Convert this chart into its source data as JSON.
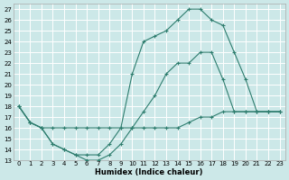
{
  "xlabel": "Humidex (Indice chaleur)",
  "background_color": "#cce8e8",
  "line_color": "#2e7d6e",
  "grid_color": "#ffffff",
  "xlim": [
    -0.5,
    23.5
  ],
  "ylim": [
    13,
    27.5
  ],
  "yticks": [
    13,
    14,
    15,
    16,
    17,
    18,
    19,
    20,
    21,
    22,
    23,
    24,
    25,
    26,
    27
  ],
  "xticks": [
    0,
    1,
    2,
    3,
    4,
    5,
    6,
    7,
    8,
    9,
    10,
    11,
    12,
    13,
    14,
    15,
    16,
    17,
    18,
    19,
    20,
    21,
    22,
    23
  ],
  "line1_x": [
    0,
    1,
    2,
    3,
    4,
    5,
    6,
    7,
    8,
    9,
    10,
    11,
    12,
    13,
    14,
    15,
    16,
    17,
    18,
    19,
    20,
    21,
    22,
    23
  ],
  "line1_y": [
    18,
    16.5,
    16,
    16,
    16,
    16,
    16,
    16,
    16,
    16,
    16,
    16,
    16,
    16,
    16,
    16.5,
    17,
    17,
    17.5,
    17.5,
    17.5,
    17.5,
    17.5,
    17.5
  ],
  "line2_x": [
    0,
    1,
    2,
    3,
    4,
    5,
    6,
    7,
    8,
    9,
    10,
    11,
    12,
    13,
    14,
    15,
    16,
    17,
    18,
    19,
    20,
    21,
    22,
    23
  ],
  "line2_y": [
    18,
    16.5,
    16,
    14.5,
    14,
    13.5,
    13,
    13,
    13.5,
    14.5,
    16,
    17.5,
    19,
    21,
    22,
    22,
    23,
    23,
    20.5,
    17.5,
    17.5,
    17.5,
    17.5,
    17.5
  ],
  "line3_x": [
    0,
    1,
    2,
    3,
    4,
    5,
    6,
    7,
    8,
    9,
    10,
    11,
    12,
    13,
    14,
    15,
    16,
    17,
    18,
    19,
    20,
    21,
    22,
    23
  ],
  "line3_y": [
    18,
    16.5,
    16,
    14.5,
    14,
    13.5,
    13.5,
    13.5,
    14.5,
    16,
    21,
    24,
    24.5,
    25,
    26,
    27,
    27,
    26,
    25.5,
    23,
    20.5,
    17.5,
    17.5,
    17.5
  ]
}
